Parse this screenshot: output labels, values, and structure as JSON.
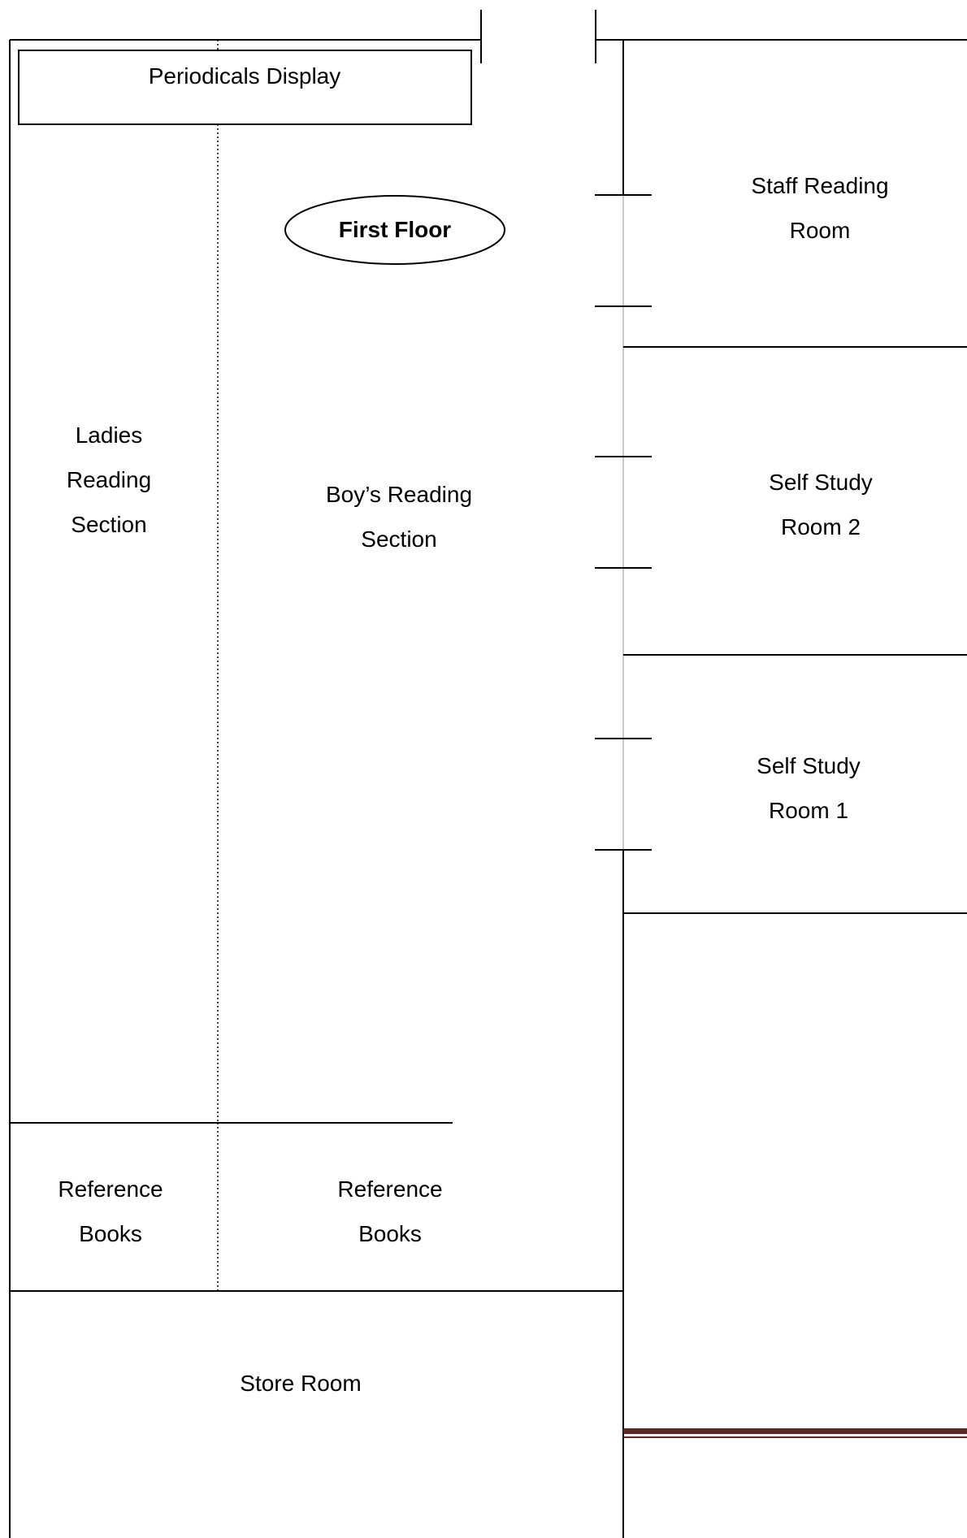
{
  "floor_label": "First Floor",
  "rooms": {
    "periodicals": [
      "Periodicals Display"
    ],
    "ladies_reading": [
      "Ladies",
      "Reading",
      "Section"
    ],
    "boys_reading": [
      "Boy’s Reading",
      "Section"
    ],
    "staff_reading": [
      "Staff Reading",
      "Room"
    ],
    "self_study_2": [
      "Self Study",
      "Room 2"
    ],
    "self_study_1": [
      "Self Study",
      "Room 1"
    ],
    "reference_left": [
      "Reference",
      "Books"
    ],
    "reference_right": [
      "Reference",
      "Books"
    ],
    "store_room": [
      "Store Room"
    ]
  },
  "colors": {
    "walls": "#000000",
    "accent_wall": "#5a2a28",
    "background": "#ffffff"
  }
}
